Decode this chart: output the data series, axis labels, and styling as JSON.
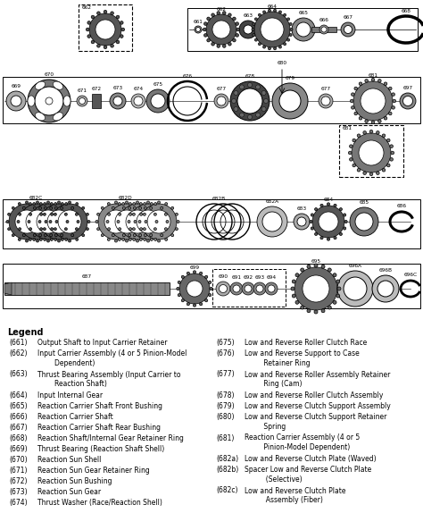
{
  "background_color": "#ffffff",
  "legend_title": "Legend",
  "left_legend": [
    [
      "(661)",
      "Output Shaft to Input Carrier Retainer"
    ],
    [
      "(662)",
      "Input Carrier Assembly (4 or 5 Pinion-Model\n        Dependent)"
    ],
    [
      "(663)",
      "Thrust Bearing Assembly (Input Carrier to\n        Reaction Shaft)"
    ],
    [
      "(664)",
      "Input Internal Gear"
    ],
    [
      "(665)",
      "Reaction Carrier Shaft Front Bushing"
    ],
    [
      "(666)",
      "Reaction Carrier Shaft"
    ],
    [
      "(667)",
      "Reaction Carrier Shaft Rear Bushing"
    ],
    [
      "(668)",
      "Reaction Shaft/Internal Gear Retainer Ring"
    ],
    [
      "(669)",
      "Thrust Bearing (Reaction Shaft Shell)"
    ],
    [
      "(670)",
      "Reaction Sun Shell"
    ],
    [
      "(671)",
      "Reaction Sun Gear Retainer Ring"
    ],
    [
      "(672)",
      "Reaction Sun Bushing"
    ],
    [
      "(673)",
      "Reaction Sun Gear"
    ],
    [
      "(674)",
      "Thrust Washer (Race/Reaction Shell)"
    ]
  ],
  "right_legend": [
    [
      "(675)",
      "Low and Reverse Roller Clutch Race"
    ],
    [
      "(676)",
      "Low and Reverse Support to Case\n         Retainer Ring"
    ],
    [
      "(677)",
      "Low and Reverse Roller Assembly Retainer\n         Ring (Cam)"
    ],
    [
      "(678)",
      "Low and Reverse Roller Clutch Assembly"
    ],
    [
      "(679)",
      "Low and Reverse Clutch Support Assembly"
    ],
    [
      "(680)",
      "Low and Reverse Clutch Support Retainer\n         Spring"
    ],
    [
      "(681)",
      "Reaction Carrier Assembly (4 or 5\n         Pinion-Model Dependent)"
    ],
    [
      "(682a)",
      "Low and Reverse Clutch Plate (Waved)"
    ],
    [
      "(682b)",
      "Spacer Low and Reverse Clutch Plate\n          (Selective)"
    ],
    [
      "(682c)",
      "Low and Reverse Clutch Plate\n          Assembly (Fiber)"
    ]
  ]
}
